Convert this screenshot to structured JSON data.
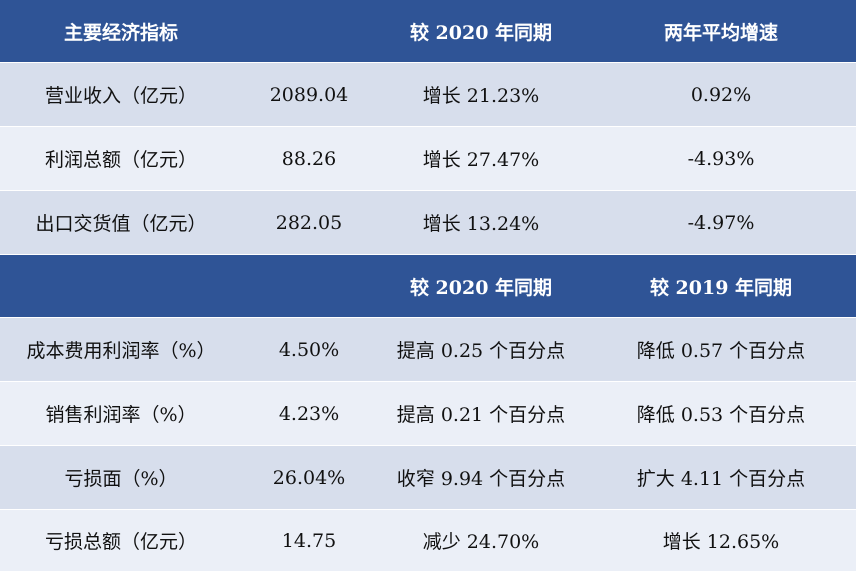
{
  "header1": [
    "主要经济指标",
    "",
    "较 2020 年同期",
    "两年平均增速"
  ],
  "section1": [
    {
      "label": "营业收入（亿元）",
      "value": "2089.04",
      "vs2020": "增长 21.23%",
      "avg": "0.92%"
    },
    {
      "label": "利润总额（亿元）",
      "value": "88.26",
      "vs2020": "增长 27.47%",
      "avg": "-4.93%"
    },
    {
      "label": "出口交货值（亿元）",
      "value": "282.05",
      "vs2020": "增长 13.24%",
      "avg": "-4.97%"
    }
  ],
  "header2": [
    "",
    "",
    "较 2020 年同期",
    "较 2019 年同期"
  ],
  "section2": [
    {
      "label": "成本费用利润率（%）",
      "value": "4.50%",
      "vs2020": "提高 0.25 个百分点",
      "avg": "降低 0.57 个百分点"
    },
    {
      "label": "销售利润率（%）",
      "value": "4.23%",
      "vs2020": "提高 0.21 个百分点",
      "avg": "降低 0.53 个百分点"
    },
    {
      "label": "亏损面（%）",
      "value": "26.04%",
      "vs2020": "收窄 9.94 个百分点",
      "avg": "扩大 4.11 个百分点"
    },
    {
      "label": "亏损总额（亿元）",
      "value": "14.75",
      "vs2020": "减少 24.70%",
      "avg": "增长 12.65%"
    }
  ],
  "colors": {
    "header": "#2f5496",
    "row_dark": "#d7deec",
    "row_light": "#ebeff7"
  }
}
